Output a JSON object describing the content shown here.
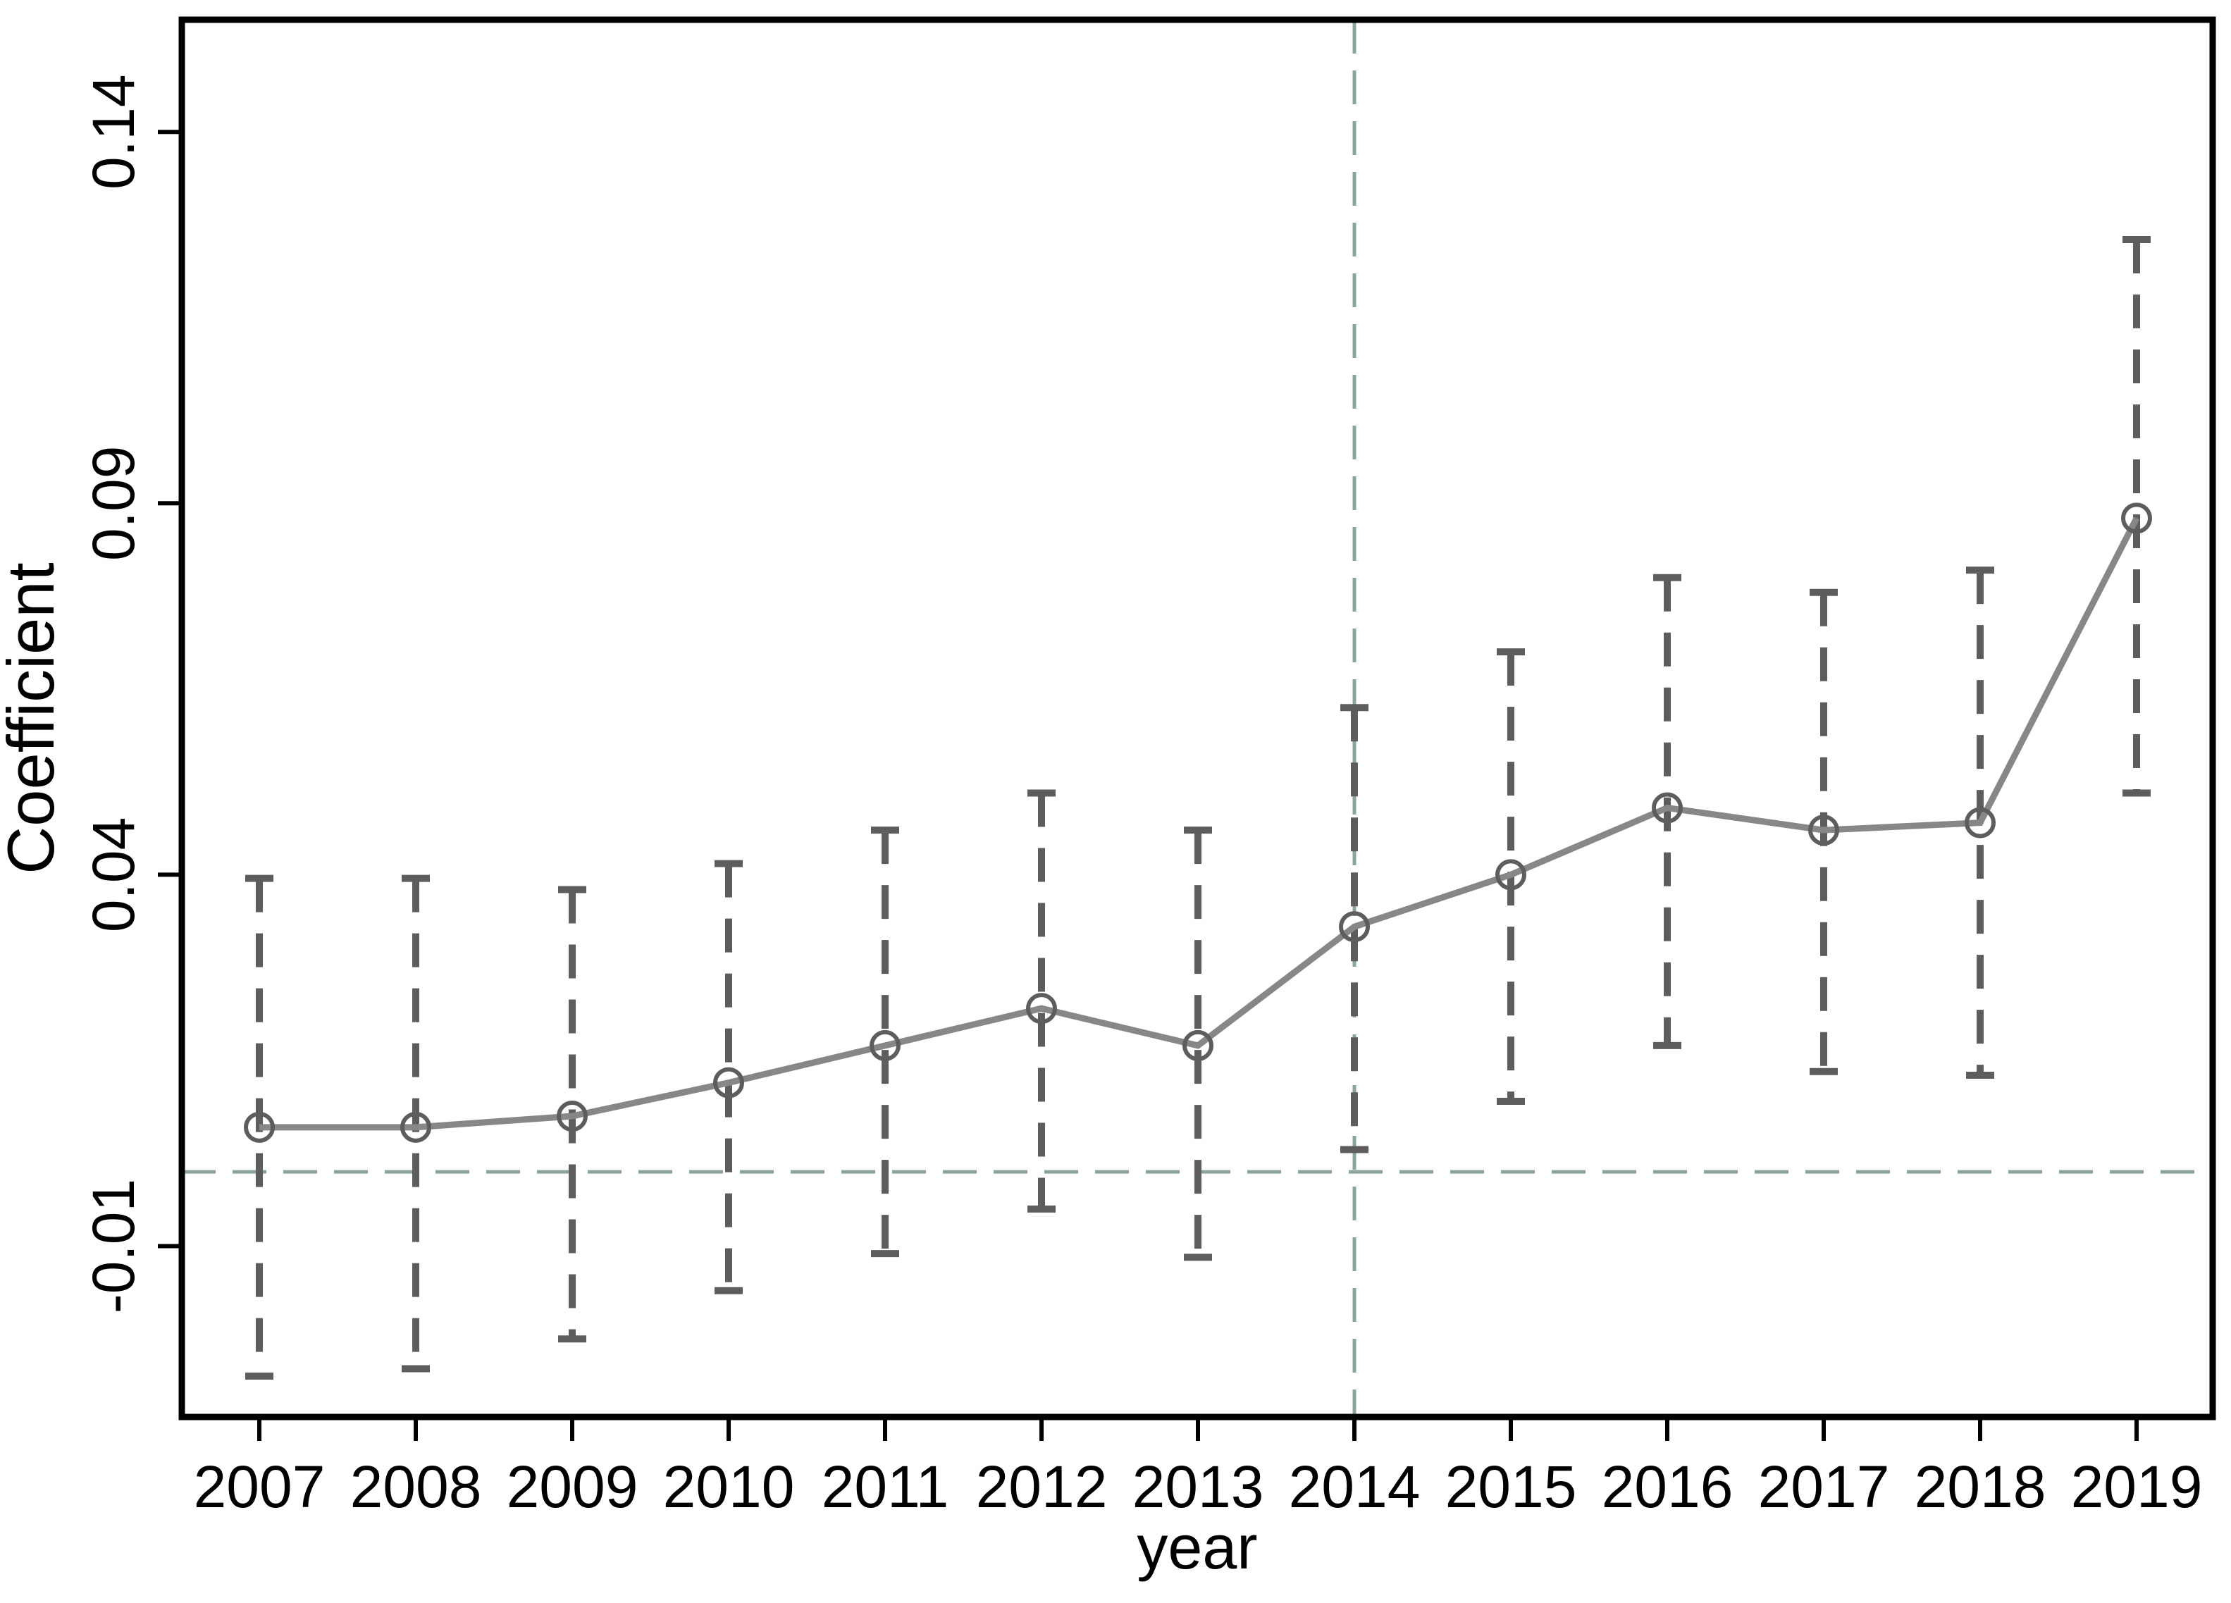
{
  "chart_data": {
    "type": "line",
    "title": "",
    "xlabel": "year",
    "ylabel": "Coefficient",
    "categories": [
      2007,
      2008,
      2009,
      2010,
      2011,
      2012,
      2013,
      2014,
      2015,
      2016,
      2017,
      2018,
      2019
    ],
    "series": [
      {
        "name": "coefficient",
        "values": [
          0.006,
          0.006,
          0.0075,
          0.012,
          0.017,
          0.022,
          0.017,
          0.033,
          0.04,
          0.049,
          0.046,
          0.047,
          0.088
        ]
      }
    ],
    "ci_high": [
      0.0395,
      0.0395,
      0.038,
      0.0415,
      0.046,
      0.051,
      0.046,
      0.0625,
      0.07,
      0.08,
      0.078,
      0.081,
      0.1255
    ],
    "ci_low": [
      -0.0275,
      -0.0265,
      -0.0225,
      -0.016,
      -0.011,
      -0.005,
      -0.0115,
      0.003,
      0.0095,
      0.017,
      0.0135,
      0.013,
      0.051
    ],
    "yticks": [
      -0.01,
      0.04,
      0.09,
      0.14
    ],
    "ytick_labels": [
      "-0.01",
      "0.04",
      "0.09",
      "0.14"
    ],
    "ylim": [
      -0.033,
      0.1551
    ],
    "reference_lines": {
      "hline_y": 0,
      "vline_x": 2014
    },
    "grid": false,
    "legend": "none",
    "marker": "circle-hollow",
    "ci_style": "dashed-capped",
    "colors": {
      "axis": "#000000",
      "text": "#000000",
      "series_line": "#878787",
      "marker": "#5d5d5d",
      "ci": "#5d5d5d",
      "reference": "#8aa69a",
      "background": "#ffffff"
    }
  }
}
